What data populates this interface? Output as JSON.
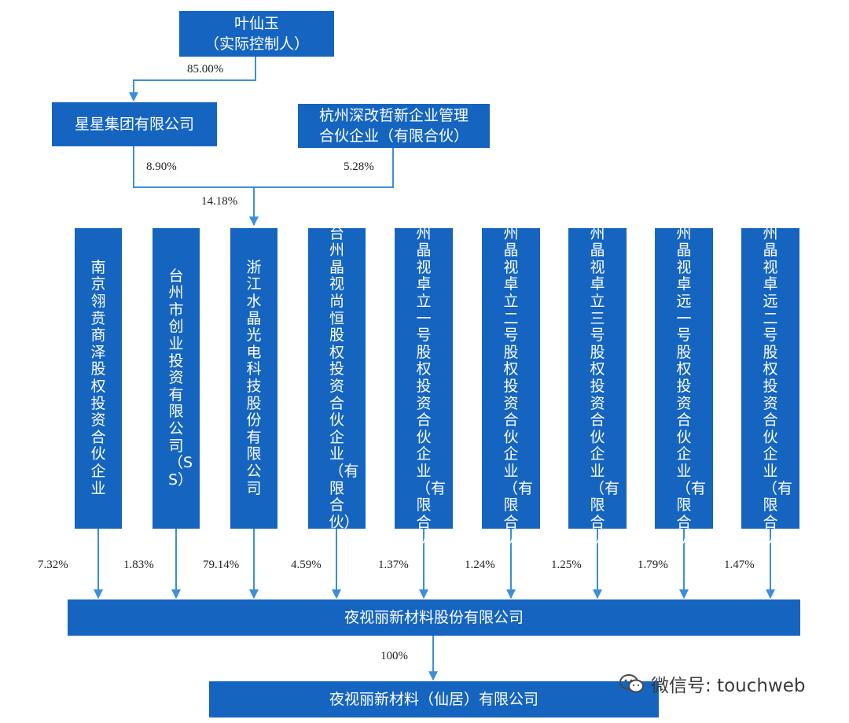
{
  "controller": {
    "name": "叶仙玉",
    "role": "（实际控制人）"
  },
  "xingxing": {
    "name": "星星集团有限公司"
  },
  "hangzhou": {
    "line1": "杭州深改哲新企业管理",
    "line2": "合伙企业（有限合伙）"
  },
  "pct_controller_xingxing": "85.00%",
  "pct_xingxing_zhejiang": "8.90%",
  "pct_hangzhou_zhejiang": "5.28%",
  "pct_total_zhejiang": "14.18%",
  "shareholders": [
    {
      "name": "南京翎贲商泽股权投资合伙企业",
      "pct": "7.32%"
    },
    {
      "name": "台州市创业投资有限公司（SS）",
      "pct": "1.83%"
    },
    {
      "name": "浙江水晶光电科技股份有限公司",
      "pct": "79.14%"
    },
    {
      "name": "台州晶视尚恒股权投资合伙企业（有限合伙）",
      "pct": "4.59%"
    },
    {
      "name": "台州晶视卓立一号股权投资合伙企业（有限合伙）",
      "pct": "1.37%"
    },
    {
      "name": "台州晶视卓立二号股权投资合伙企业（有限合伙）",
      "pct": "1.24%"
    },
    {
      "name": "台州晶视卓立三号股权投资合伙企业（有限合伙）",
      "pct": "1.25%"
    },
    {
      "name": "台州晶视卓远一号股权投资合伙企业（有限合伙）",
      "pct": "1.79%"
    },
    {
      "name": "台州晶视卓远二号股权投资合伙企业（有限合伙）",
      "pct": "1.47%"
    }
  ],
  "company": {
    "name": "夜视丽新材料股份有限公司"
  },
  "pct_company_sub": "100%",
  "subsidiary": {
    "name": "夜视丽新材料（仙居）有限公司"
  },
  "watermark": {
    "label": "微信号: touchweb",
    "icon": "wechat-icon"
  },
  "colors": {
    "box": "#1565c0",
    "line": "#3b8fd9"
  }
}
